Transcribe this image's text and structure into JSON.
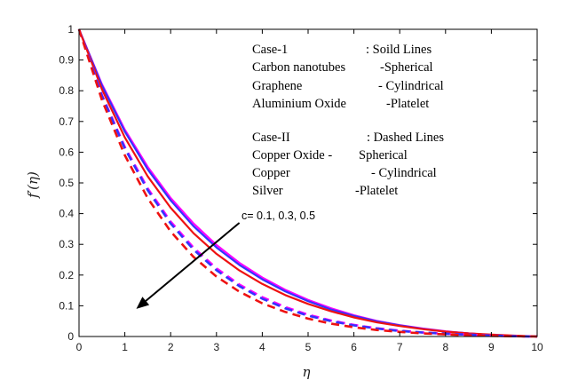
{
  "chart_data": {
    "type": "line",
    "title": "",
    "xlabel": "η",
    "ylabel": "f′(η)",
    "xlim": [
      0,
      10
    ],
    "ylim": [
      0,
      1
    ],
    "x_ticks": [
      "0",
      "1",
      "2",
      "3",
      "4",
      "5",
      "6",
      "7",
      "8",
      "9",
      "10"
    ],
    "y_ticks": [
      "0",
      "0.1",
      "0.2",
      "0.3",
      "0.4",
      "0.5",
      "0.6",
      "0.7",
      "0.8",
      "0.9",
      "1"
    ],
    "grid": false,
    "legend": {
      "position": "top-right",
      "lines": [
        {
          "label": "Case-1",
          "value": ": Soild Lines"
        },
        {
          "label": "Carbon nanotubes",
          "value": "-Spherical"
        },
        {
          "label": "Graphene",
          "value": "- Cylindrical"
        },
        {
          "label": "Aluminium Oxide",
          "value": "-Platelet"
        },
        {
          "label": "Case-II",
          "value": ":  Dashed Lines"
        },
        {
          "label": "Copper Oxide -",
          "value": "Spherical"
        },
        {
          "label": "Copper",
          "value": "- Cylindrical"
        },
        {
          "label": "Silver",
          "value": "-Platelet"
        }
      ]
    },
    "annotation": {
      "text": "c= 0.1, 0.3, 0.5",
      "arrow_from": [
        3.5,
        0.37
      ],
      "arrow_to": [
        1.25,
        0.09
      ]
    },
    "x": [
      0,
      0.5,
      1,
      1.5,
      2,
      2.5,
      3,
      3.5,
      4,
      4.5,
      5,
      5.5,
      6,
      6.5,
      7,
      7.5,
      8,
      8.5,
      9,
      9.5,
      10
    ],
    "series": [
      {
        "name": "Case-1, c=0.5",
        "style": "solid",
        "color": "#ff00ff",
        "values": [
          1,
          0.821,
          0.673,
          0.552,
          0.451,
          0.368,
          0.298,
          0.24,
          0.192,
          0.152,
          0.119,
          0.092,
          0.069,
          0.051,
          0.037,
          0.026,
          0.017,
          0.01,
          0.005,
          0.002,
          0
        ]
      },
      {
        "name": "Case-1, c=0.3",
        "style": "solid",
        "color": "#3333ff",
        "values": [
          1,
          0.817,
          0.667,
          0.544,
          0.443,
          0.359,
          0.29,
          0.233,
          0.186,
          0.147,
          0.115,
          0.088,
          0.067,
          0.049,
          0.036,
          0.025,
          0.016,
          0.01,
          0.005,
          0.002,
          0
        ]
      },
      {
        "name": "Case-1, c=0.1",
        "style": "solid",
        "color": "#ee1111",
        "values": [
          1,
          0.805,
          0.648,
          0.521,
          0.419,
          0.336,
          0.269,
          0.215,
          0.171,
          0.135,
          0.106,
          0.082,
          0.062,
          0.046,
          0.034,
          0.024,
          0.016,
          0.01,
          0.006,
          0.003,
          0
        ]
      },
      {
        "name": "Case-II, c=0.5",
        "style": "dashed",
        "color": "#ff00ff",
        "values": [
          1,
          0.786,
          0.617,
          0.482,
          0.374,
          0.289,
          0.222,
          0.169,
          0.128,
          0.096,
          0.071,
          0.052,
          0.038,
          0.027,
          0.019,
          0.013,
          0.009,
          0.006,
          0.003,
          0.001,
          0
        ]
      },
      {
        "name": "Case-II, c=0.3",
        "style": "dashed",
        "color": "#3333ff",
        "values": [
          1,
          0.783,
          0.612,
          0.476,
          0.368,
          0.283,
          0.216,
          0.164,
          0.123,
          0.092,
          0.068,
          0.05,
          0.036,
          0.026,
          0.018,
          0.013,
          0.009,
          0.006,
          0.003,
          0.001,
          0
        ]
      },
      {
        "name": "Case-II, c=0.1",
        "style": "dashed",
        "color": "#ee1111",
        "values": [
          1,
          0.77,
          0.59,
          0.45,
          0.342,
          0.259,
          0.195,
          0.146,
          0.108,
          0.08,
          0.058,
          0.042,
          0.03,
          0.021,
          0.015,
          0.01,
          0.007,
          0.004,
          0.002,
          0.001,
          0
        ]
      }
    ]
  }
}
